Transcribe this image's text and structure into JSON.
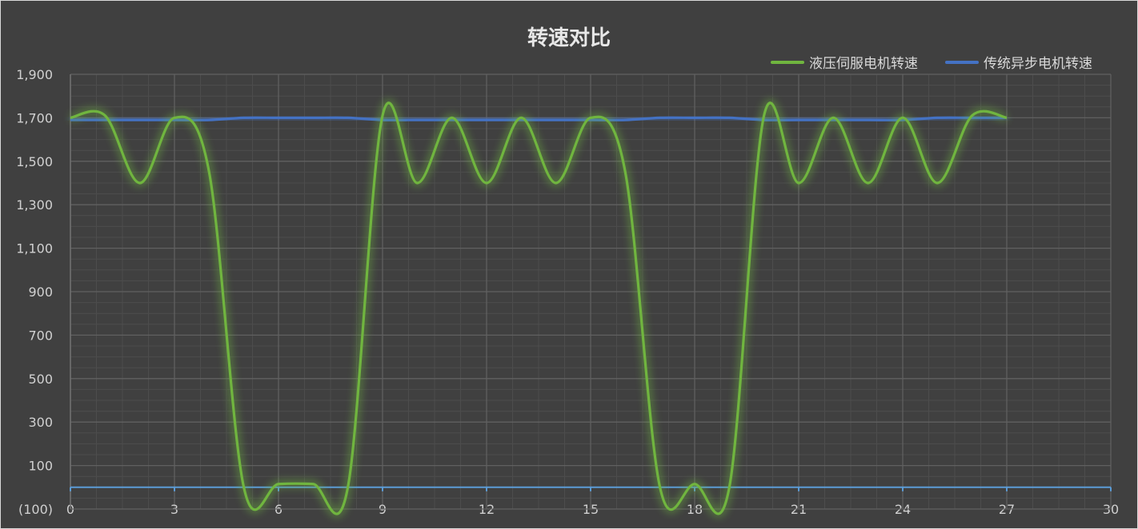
{
  "chart_data": {
    "type": "line",
    "title": "转速对比",
    "xlim": [
      0,
      30
    ],
    "ylim": [
      -100,
      1900
    ],
    "xticks": [
      0,
      3,
      6,
      9,
      12,
      15,
      18,
      21,
      24,
      27,
      30
    ],
    "yticks": [
      -100,
      100,
      300,
      500,
      700,
      900,
      1100,
      1300,
      1500,
      1700,
      1900
    ],
    "ytick_labels": [
      "(100)",
      "100",
      "300",
      "500",
      "700",
      "900",
      "1,100",
      "1,300",
      "1,500",
      "1,700",
      "1,900"
    ],
    "grid": true,
    "legend_position": "top-right",
    "series": [
      {
        "name": "液压伺服电机转速",
        "color": "#70b53f",
        "smooth": true,
        "x": [
          0,
          1,
          2,
          3,
          4,
          5,
          6,
          7,
          8,
          9,
          10,
          11,
          12,
          13,
          14,
          15,
          16,
          17,
          18,
          19,
          20,
          21,
          22,
          23,
          24,
          25,
          26,
          27
        ],
        "values": [
          1700,
          1710,
          1400,
          1700,
          1450,
          0,
          15,
          15,
          0,
          1710,
          1400,
          1700,
          1400,
          1700,
          1400,
          1700,
          1450,
          0,
          15,
          0,
          1710,
          1400,
          1700,
          1400,
          1700,
          1400,
          1710,
          1700
        ]
      },
      {
        "name": "传统异步电机转速",
        "color": "#4472c4",
        "smooth": true,
        "x": [
          0,
          1,
          2,
          3,
          4,
          5,
          6,
          7,
          8,
          9,
          10,
          11,
          12,
          13,
          14,
          15,
          16,
          17,
          18,
          19,
          20,
          21,
          22,
          23,
          24,
          25,
          26,
          27
        ],
        "values": [
          1690,
          1690,
          1690,
          1690,
          1690,
          1700,
          1700,
          1700,
          1700,
          1690,
          1690,
          1690,
          1690,
          1690,
          1690,
          1690,
          1690,
          1700,
          1700,
          1700,
          1690,
          1690,
          1690,
          1690,
          1690,
          1700,
          1700,
          1700
        ]
      }
    ]
  }
}
